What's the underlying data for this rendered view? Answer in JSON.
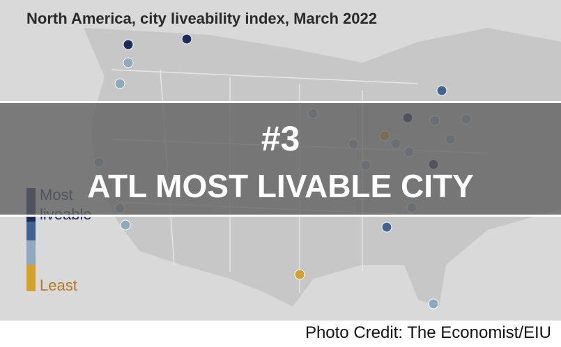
{
  "map": {
    "title": "North America, city liveability index, March 2022",
    "legend": {
      "most": "Most liveable",
      "least": "Least"
    }
  },
  "overlay": {
    "rank": "#3",
    "headline": "ATL MOST LIVABLE CITY"
  },
  "credit": "Photo Credit: The Economist/EIU"
}
